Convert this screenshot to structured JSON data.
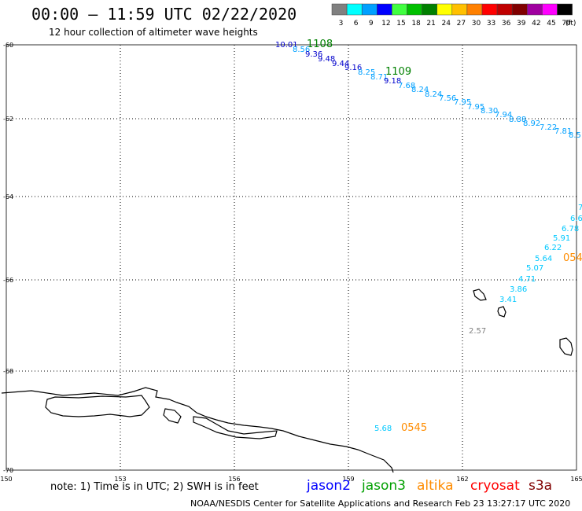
{
  "header": {
    "title": "00:00 — 11:59 UTC 02/22/2020",
    "subtitle": "12 hour collection of altimeter wave heights"
  },
  "legend": {
    "unit": "(ft)",
    "bins": [
      {
        "label": "3",
        "color": "#808080"
      },
      {
        "label": "6",
        "color": "#00ffff"
      },
      {
        "label": "9",
        "color": "#00a0ff"
      },
      {
        "label": "12",
        "color": "#0000ff"
      },
      {
        "label": "15",
        "color": "#40ff40"
      },
      {
        "label": "18",
        "color": "#00c000"
      },
      {
        "label": "21",
        "color": "#008000"
      },
      {
        "label": "24",
        "color": "#ffff00"
      },
      {
        "label": "27",
        "color": "#ffc000"
      },
      {
        "label": "30",
        "color": "#ff8000"
      },
      {
        "label": "33",
        "color": "#ff0000"
      },
      {
        "label": "36",
        "color": "#c00000"
      },
      {
        "label": "39",
        "color": "#800000"
      },
      {
        "label": "42",
        "color": "#a000a0"
      },
      {
        "label": "45",
        "color": "#ff00ff"
      },
      {
        "label": "70",
        "color": "#000000"
      }
    ]
  },
  "axes": {
    "lat_labels": [
      "-60",
      "-62",
      "-64",
      "-66",
      "-68",
      "-70"
    ],
    "lon_labels": [
      "150",
      "153",
      "156",
      "159",
      "162",
      "165"
    ]
  },
  "tracks": [
    {
      "type": "time",
      "text": "1108",
      "color": "#008000"
    },
    {
      "type": "time",
      "text": "1109",
      "color": "#008000"
    },
    {
      "type": "time",
      "text": "0545",
      "color": "#ff8c00"
    },
    {
      "type": "time",
      "text": "054",
      "color": "#ff8c00"
    },
    {
      "type": "swh",
      "text": "10.01",
      "color": "#0000cc"
    },
    {
      "type": "swh",
      "text": "8.56",
      "color": "#00a0ff"
    },
    {
      "type": "swh",
      "text": "9.36",
      "color": "#0000cc"
    },
    {
      "type": "swh",
      "text": "9.48",
      "color": "#0000cc"
    },
    {
      "type": "swh",
      "text": "9.44",
      "color": "#0000cc"
    },
    {
      "type": "swh",
      "text": "9.16",
      "color": "#0000cc"
    },
    {
      "type": "swh",
      "text": "8.25",
      "color": "#00a0ff"
    },
    {
      "type": "swh",
      "text": "8.71",
      "color": "#00a0ff"
    },
    {
      "type": "swh",
      "text": "9.18",
      "color": "#0000cc"
    },
    {
      "type": "swh",
      "text": "7.68",
      "color": "#00a0ff"
    },
    {
      "type": "swh",
      "text": "8.24",
      "color": "#00a0ff"
    },
    {
      "type": "swh",
      "text": "8.24",
      "color": "#00a0ff"
    },
    {
      "type": "swh",
      "text": "7.56",
      "color": "#00a0ff"
    },
    {
      "type": "swh",
      "text": "7.95",
      "color": "#00a0ff"
    },
    {
      "type": "swh",
      "text": "7.95",
      "color": "#00a0ff"
    },
    {
      "type": "swh",
      "text": "8.30",
      "color": "#00a0ff"
    },
    {
      "type": "swh",
      "text": "7.94",
      "color": "#00a0ff"
    },
    {
      "type": "swh",
      "text": "8.88",
      "color": "#00a0ff"
    },
    {
      "type": "swh",
      "text": "8.92",
      "color": "#00a0ff"
    },
    {
      "type": "swh",
      "text": "7.22",
      "color": "#00a0ff"
    },
    {
      "type": "swh",
      "text": "7.81",
      "color": "#00a0ff"
    },
    {
      "type": "swh",
      "text": "8.5",
      "color": "#00a0ff"
    },
    {
      "type": "swh",
      "text": "7",
      "color": "#00c8ff"
    },
    {
      "type": "swh",
      "text": "6.6",
      "color": "#00c8ff"
    },
    {
      "type": "swh",
      "text": "6.78",
      "color": "#00c8ff"
    },
    {
      "type": "swh",
      "text": "5.91",
      "color": "#00c8ff"
    },
    {
      "type": "swh",
      "text": "6.22",
      "color": "#00c8ff"
    },
    {
      "type": "swh",
      "text": "5.64",
      "color": "#00c8ff"
    },
    {
      "type": "swh",
      "text": "5.07",
      "color": "#00c8ff"
    },
    {
      "type": "swh",
      "text": "4.71",
      "color": "#00c8ff"
    },
    {
      "type": "swh",
      "text": "3.86",
      "color": "#00c8ff"
    },
    {
      "type": "swh",
      "text": "3.41",
      "color": "#00c8ff"
    },
    {
      "type": "swh",
      "text": "2.57",
      "color": "#808080"
    },
    {
      "type": "swh",
      "text": "5.68",
      "color": "#00c8ff"
    }
  ],
  "footer": {
    "note": "note: 1) Time is in UTC; 2) SWH is in feet",
    "credit": "NOAA/NESDIS Center for Satellite Applications and Research    Feb 23 13:27:17 UTC 2020",
    "satellites": [
      {
        "name": "jason2",
        "color": "#0000ff"
      },
      {
        "name": "jason3",
        "color": "#00a000"
      },
      {
        "name": "altika",
        "color": "#ff8c00"
      },
      {
        "name": "cryosat",
        "color": "#ff0000"
      },
      {
        "name": "s3a",
        "color": "#800000"
      }
    ]
  }
}
